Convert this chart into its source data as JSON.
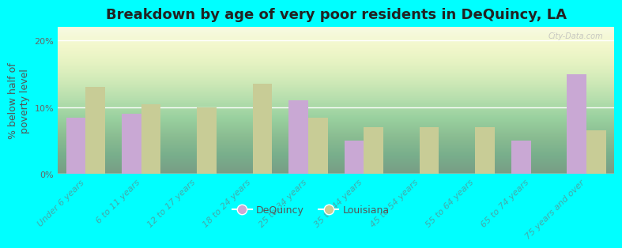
{
  "title": "Breakdown by age of very poor residents in DeQuincy, LA",
  "ylabel": "% below half of\npoverty level",
  "categories": [
    "Under 6 years",
    "6 to 11 years",
    "12 to 17 years",
    "18 to 24 years",
    "25 to 34 years",
    "35 to 44 years",
    "45 to 54 years",
    "55 to 64 years",
    "65 to 74 years",
    "75 years and over"
  ],
  "dequincy_values": [
    8.5,
    9.0,
    0.0,
    0.0,
    11.0,
    5.0,
    0.0,
    0.0,
    5.0,
    15.0
  ],
  "louisiana_values": [
    13.0,
    10.5,
    10.0,
    13.5,
    8.5,
    7.0,
    7.0,
    7.0,
    0.0,
    6.5
  ],
  "dequincy_color": "#c9a8d4",
  "louisiana_color": "#c8cc96",
  "background_color": "#00ffff",
  "plot_bg_color": "#eef5e8",
  "ylim": [
    0,
    22
  ],
  "yticks": [
    0,
    10,
    20
  ],
  "ytick_labels": [
    "0%",
    "10%",
    "20%"
  ],
  "watermark": "City-Data.com",
  "bar_width": 0.35,
  "title_fontsize": 13,
  "axis_label_fontsize": 9,
  "tick_fontsize": 8,
  "legend_fontsize": 9,
  "xtick_color": "#44aaaa",
  "ytick_color": "#666666"
}
